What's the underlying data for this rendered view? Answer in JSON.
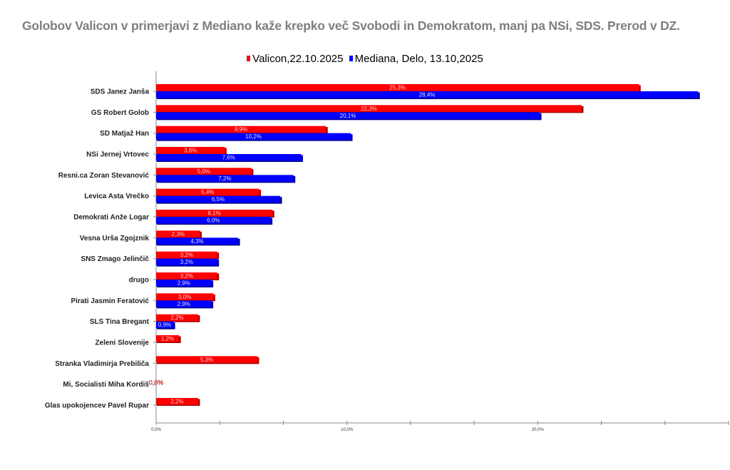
{
  "chart_data": {
    "type": "bar",
    "orientation": "horizontal",
    "title": "Golobov Valicon v primerjavi z Mediano kaže krepko več Svobodi in Demokratom, manj pa NSi, SDS. Prerod v DZ.",
    "xlabel": "",
    "ylabel": "",
    "xlim": [
      0,
      30
    ],
    "x_ticks": [
      0,
      10,
      20
    ],
    "x_tick_labels": [
      "0,0%",
      "10,0%",
      "20,0%"
    ],
    "legend_position": "top-center",
    "categories": [
      "SDS Janez Janša",
      "GS Robert Golob",
      "SD Matjaž Han",
      "NSi Jernej Vrtovec",
      "Resni.ca Zoran Stevanović",
      "Levica  Asta Vrečko",
      "Demokrati Anže Logar",
      "Vesna Urša Zgojznik",
      "SNS Zmago Jelinčič",
      "drugo",
      "Pirati Jasmin Feratović",
      "SLS Tina Bregant",
      "Zeleni Slovenije",
      "Stranka Vladimirja Prebiliča",
      "Mi, Socialisti Miha Kordiš",
      "Glas upokojencev Pavel Rupar"
    ],
    "series": [
      {
        "name": "Valicon,22.10.2025",
        "color": "#ff0000",
        "values": [
          25.3,
          22.3,
          8.9,
          3.6,
          5.0,
          5.4,
          6.1,
          2.3,
          3.2,
          3.2,
          3.0,
          2.2,
          1.2,
          5.3,
          0.0,
          2.2
        ],
        "labels": [
          "25,3%",
          "22,3%",
          "8,9%",
          "3,6%",
          "5,0%",
          "5,4%",
          "6,1%",
          "2,3%",
          "3,2%",
          "3,2%",
          "3,0%",
          "2,2%",
          "1,2%",
          "5,3%",
          "0,0%",
          "2,2%"
        ]
      },
      {
        "name": "Mediana, Delo, 13.10,2025",
        "color": "#0000ff",
        "values": [
          28.4,
          20.1,
          10.2,
          7.6,
          7.2,
          6.5,
          6.0,
          4.3,
          3.2,
          2.9,
          2.9,
          0.9,
          null,
          null,
          null,
          null
        ],
        "labels": [
          "28,4%",
          "20,1%",
          "10,2%",
          "7,6%",
          "7,2%",
          "6,5%",
          "6,0%",
          "4,3%",
          "3,2%",
          "2,9%",
          "2,9%",
          "0,9%",
          null,
          null,
          null,
          null
        ]
      }
    ]
  }
}
